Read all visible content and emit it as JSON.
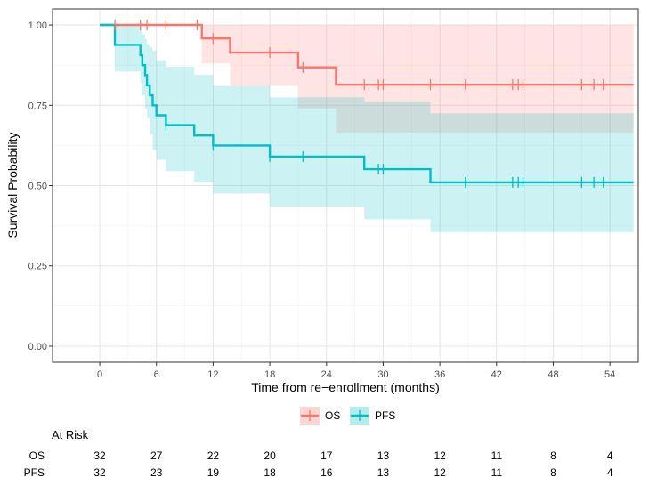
{
  "chart_data": {
    "type": "line",
    "subtype": "kaplan-meier",
    "xlabel": "Time from re−enrollment (months)",
    "ylabel": "Survival Probability",
    "xlim": [
      -5,
      57
    ],
    "ylim": [
      -0.05,
      1.05
    ],
    "x_ticks": [
      0,
      6,
      12,
      18,
      24,
      30,
      36,
      42,
      48,
      54
    ],
    "y_ticks": [
      0.0,
      0.25,
      0.5,
      0.75,
      1.0
    ],
    "y_tick_labels": [
      "0.00",
      "0.25",
      "0.50",
      "0.75",
      "1.00"
    ],
    "grid": true,
    "legend_position": "bottom",
    "series": [
      {
        "name": "OS",
        "color": "#F8766D",
        "band_color": "#F8766D",
        "steps": [
          [
            0,
            1.0
          ],
          [
            10.8,
            0.958
          ],
          [
            13.8,
            0.914
          ],
          [
            21.0,
            0.868
          ],
          [
            25.0,
            0.814
          ],
          [
            56.5,
            0.814
          ]
        ],
        "ci_band": [
          [
            0,
            1.0,
            1.0
          ],
          [
            10.8,
            0.88,
            1.0
          ],
          [
            13.8,
            0.81,
            1.0
          ],
          [
            21.0,
            0.74,
            1.0
          ],
          [
            25.0,
            0.665,
            1.0
          ],
          [
            56.5,
            0.665,
            1.0
          ]
        ],
        "censor_x": [
          1.6,
          4.3,
          5.0,
          7.0,
          10.3,
          12.0,
          18.0,
          21.5,
          28.0,
          29.5,
          30.0,
          35.0,
          38.7,
          43.7,
          44.3,
          44.8,
          51.0,
          52.3,
          53.3
        ]
      },
      {
        "name": "PFS",
        "color": "#00BFC4",
        "band_color": "#00BFC4",
        "steps": [
          [
            0,
            1.0
          ],
          [
            1.6,
            0.938
          ],
          [
            4.3,
            0.906
          ],
          [
            4.5,
            0.875
          ],
          [
            4.8,
            0.844
          ],
          [
            5.0,
            0.812
          ],
          [
            5.3,
            0.781
          ],
          [
            5.6,
            0.75
          ],
          [
            6.0,
            0.719
          ],
          [
            7.0,
            0.688
          ],
          [
            10.0,
            0.656
          ],
          [
            12.0,
            0.625
          ],
          [
            18.0,
            0.59
          ],
          [
            28.0,
            0.551
          ],
          [
            35.0,
            0.51
          ],
          [
            56.5,
            0.51
          ]
        ],
        "ci_band": [
          [
            0,
            1.0,
            1.0
          ],
          [
            1.6,
            0.855,
            1.0
          ],
          [
            4.3,
            0.82,
            0.99
          ],
          [
            4.5,
            0.78,
            0.97
          ],
          [
            4.8,
            0.74,
            0.955
          ],
          [
            5.0,
            0.71,
            0.94
          ],
          [
            5.3,
            0.66,
            0.93
          ],
          [
            5.6,
            0.61,
            0.92
          ],
          [
            6.0,
            0.58,
            0.89
          ],
          [
            7.0,
            0.545,
            0.87
          ],
          [
            10.0,
            0.51,
            0.845
          ],
          [
            12.0,
            0.475,
            0.81
          ],
          [
            18.0,
            0.435,
            0.775
          ],
          [
            28.0,
            0.395,
            0.76
          ],
          [
            35.0,
            0.355,
            0.725
          ],
          [
            56.5,
            0.355,
            0.725
          ]
        ],
        "censor_x": [
          7.0,
          12.0,
          18.0,
          21.5,
          29.5,
          30.0,
          38.7,
          43.7,
          44.3,
          44.8,
          51.0,
          52.3,
          53.3
        ]
      }
    ],
    "risk_table": {
      "title": "At Risk",
      "time_points": [
        0,
        6,
        12,
        18,
        24,
        30,
        36,
        42,
        48,
        54
      ],
      "rows": [
        {
          "label": "OS",
          "values": [
            "32",
            "27",
            "22",
            "20",
            "17",
            "13",
            "12",
            "11",
            "8",
            "4"
          ]
        },
        {
          "label": "PFS",
          "values": [
            "32",
            "23",
            "19",
            "18",
            "16",
            "13",
            "12",
            "11",
            "8",
            "4"
          ]
        }
      ]
    }
  }
}
